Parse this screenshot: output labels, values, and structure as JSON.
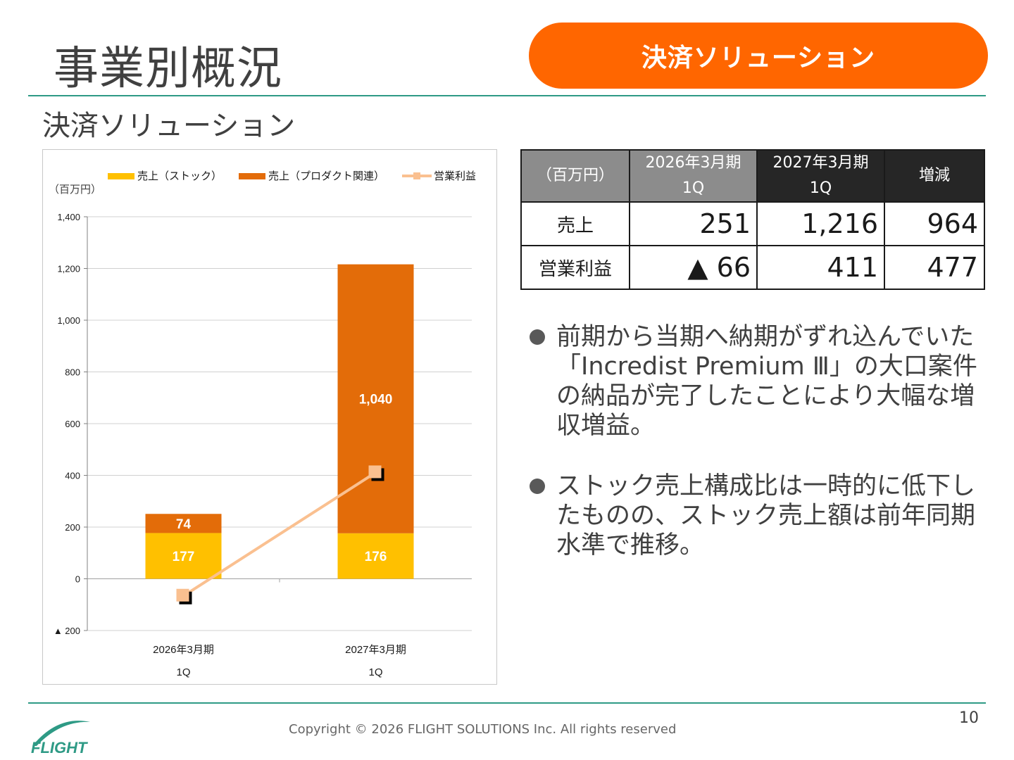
{
  "header": {
    "title": "事業別概況",
    "segment_badge": "決済ソリューション"
  },
  "subtitle": "決済ソリューション",
  "chart_data": {
    "type": "bar",
    "stacked": true,
    "unit_label": "（百万円）",
    "categories": [
      [
        "2026年3月期",
        "1Q"
      ],
      [
        "2027年3月期",
        "1Q"
      ]
    ],
    "series": [
      {
        "name": "売上（ストック）",
        "kind": "bar",
        "color": "#ffc000",
        "values": [
          177,
          176
        ],
        "labels": [
          "177",
          "176"
        ]
      },
      {
        "name": "売上（プロダクト関連）",
        "kind": "bar",
        "color": "#e36c09",
        "values": [
          74,
          1040
        ],
        "labels": [
          "74",
          "1,040"
        ]
      },
      {
        "name": "営業利益",
        "kind": "line",
        "color": "#fac090",
        "values": [
          -66,
          411
        ]
      }
    ],
    "ylim": [
      -200,
      1400
    ],
    "yticks": [
      {
        "value": 1400,
        "label": "1,400"
      },
      {
        "value": 1200,
        "label": "1,200"
      },
      {
        "value": 1000,
        "label": "1,000"
      },
      {
        "value": 800,
        "label": "800"
      },
      {
        "value": 600,
        "label": "600"
      },
      {
        "value": 400,
        "label": "400"
      },
      {
        "value": 200,
        "label": "200"
      },
      {
        "value": 0,
        "label": "0"
      },
      {
        "value": -200,
        "label": "▲ 200"
      }
    ],
    "grid": true,
    "legend_position": "top"
  },
  "table": {
    "header": {
      "unit": "（百万円）",
      "prev_line1": "2026年3月期",
      "prev_line2": "1Q",
      "cur_line1": "2027年3月期",
      "cur_line2": "1Q",
      "diff": "増減"
    },
    "rows": [
      {
        "label": "売上",
        "prev": "251",
        "cur": "1,216",
        "diff": "964"
      },
      {
        "label": "営業利益",
        "prev": "▲ 66",
        "cur": "411",
        "diff": "477"
      }
    ]
  },
  "bullets": [
    "前期から当期へ納期がずれ込んでいた「Incredist Premium Ⅲ」の大口案件の納品が完了したことにより大幅な増収増益。",
    "ストック売上構成比は一時的に低下したものの、ストック売上額は前年同期水準で推移。"
  ],
  "footer": {
    "logo_text": "FLIGHT",
    "copyright": "Copyright ©  2026 FLIGHT SOLUTIONS Inc. All rights reserved",
    "page_number": "10"
  },
  "colors": {
    "accent": "#ff6600",
    "rule": "#2e9a85",
    "logo": "#2e9a85"
  }
}
